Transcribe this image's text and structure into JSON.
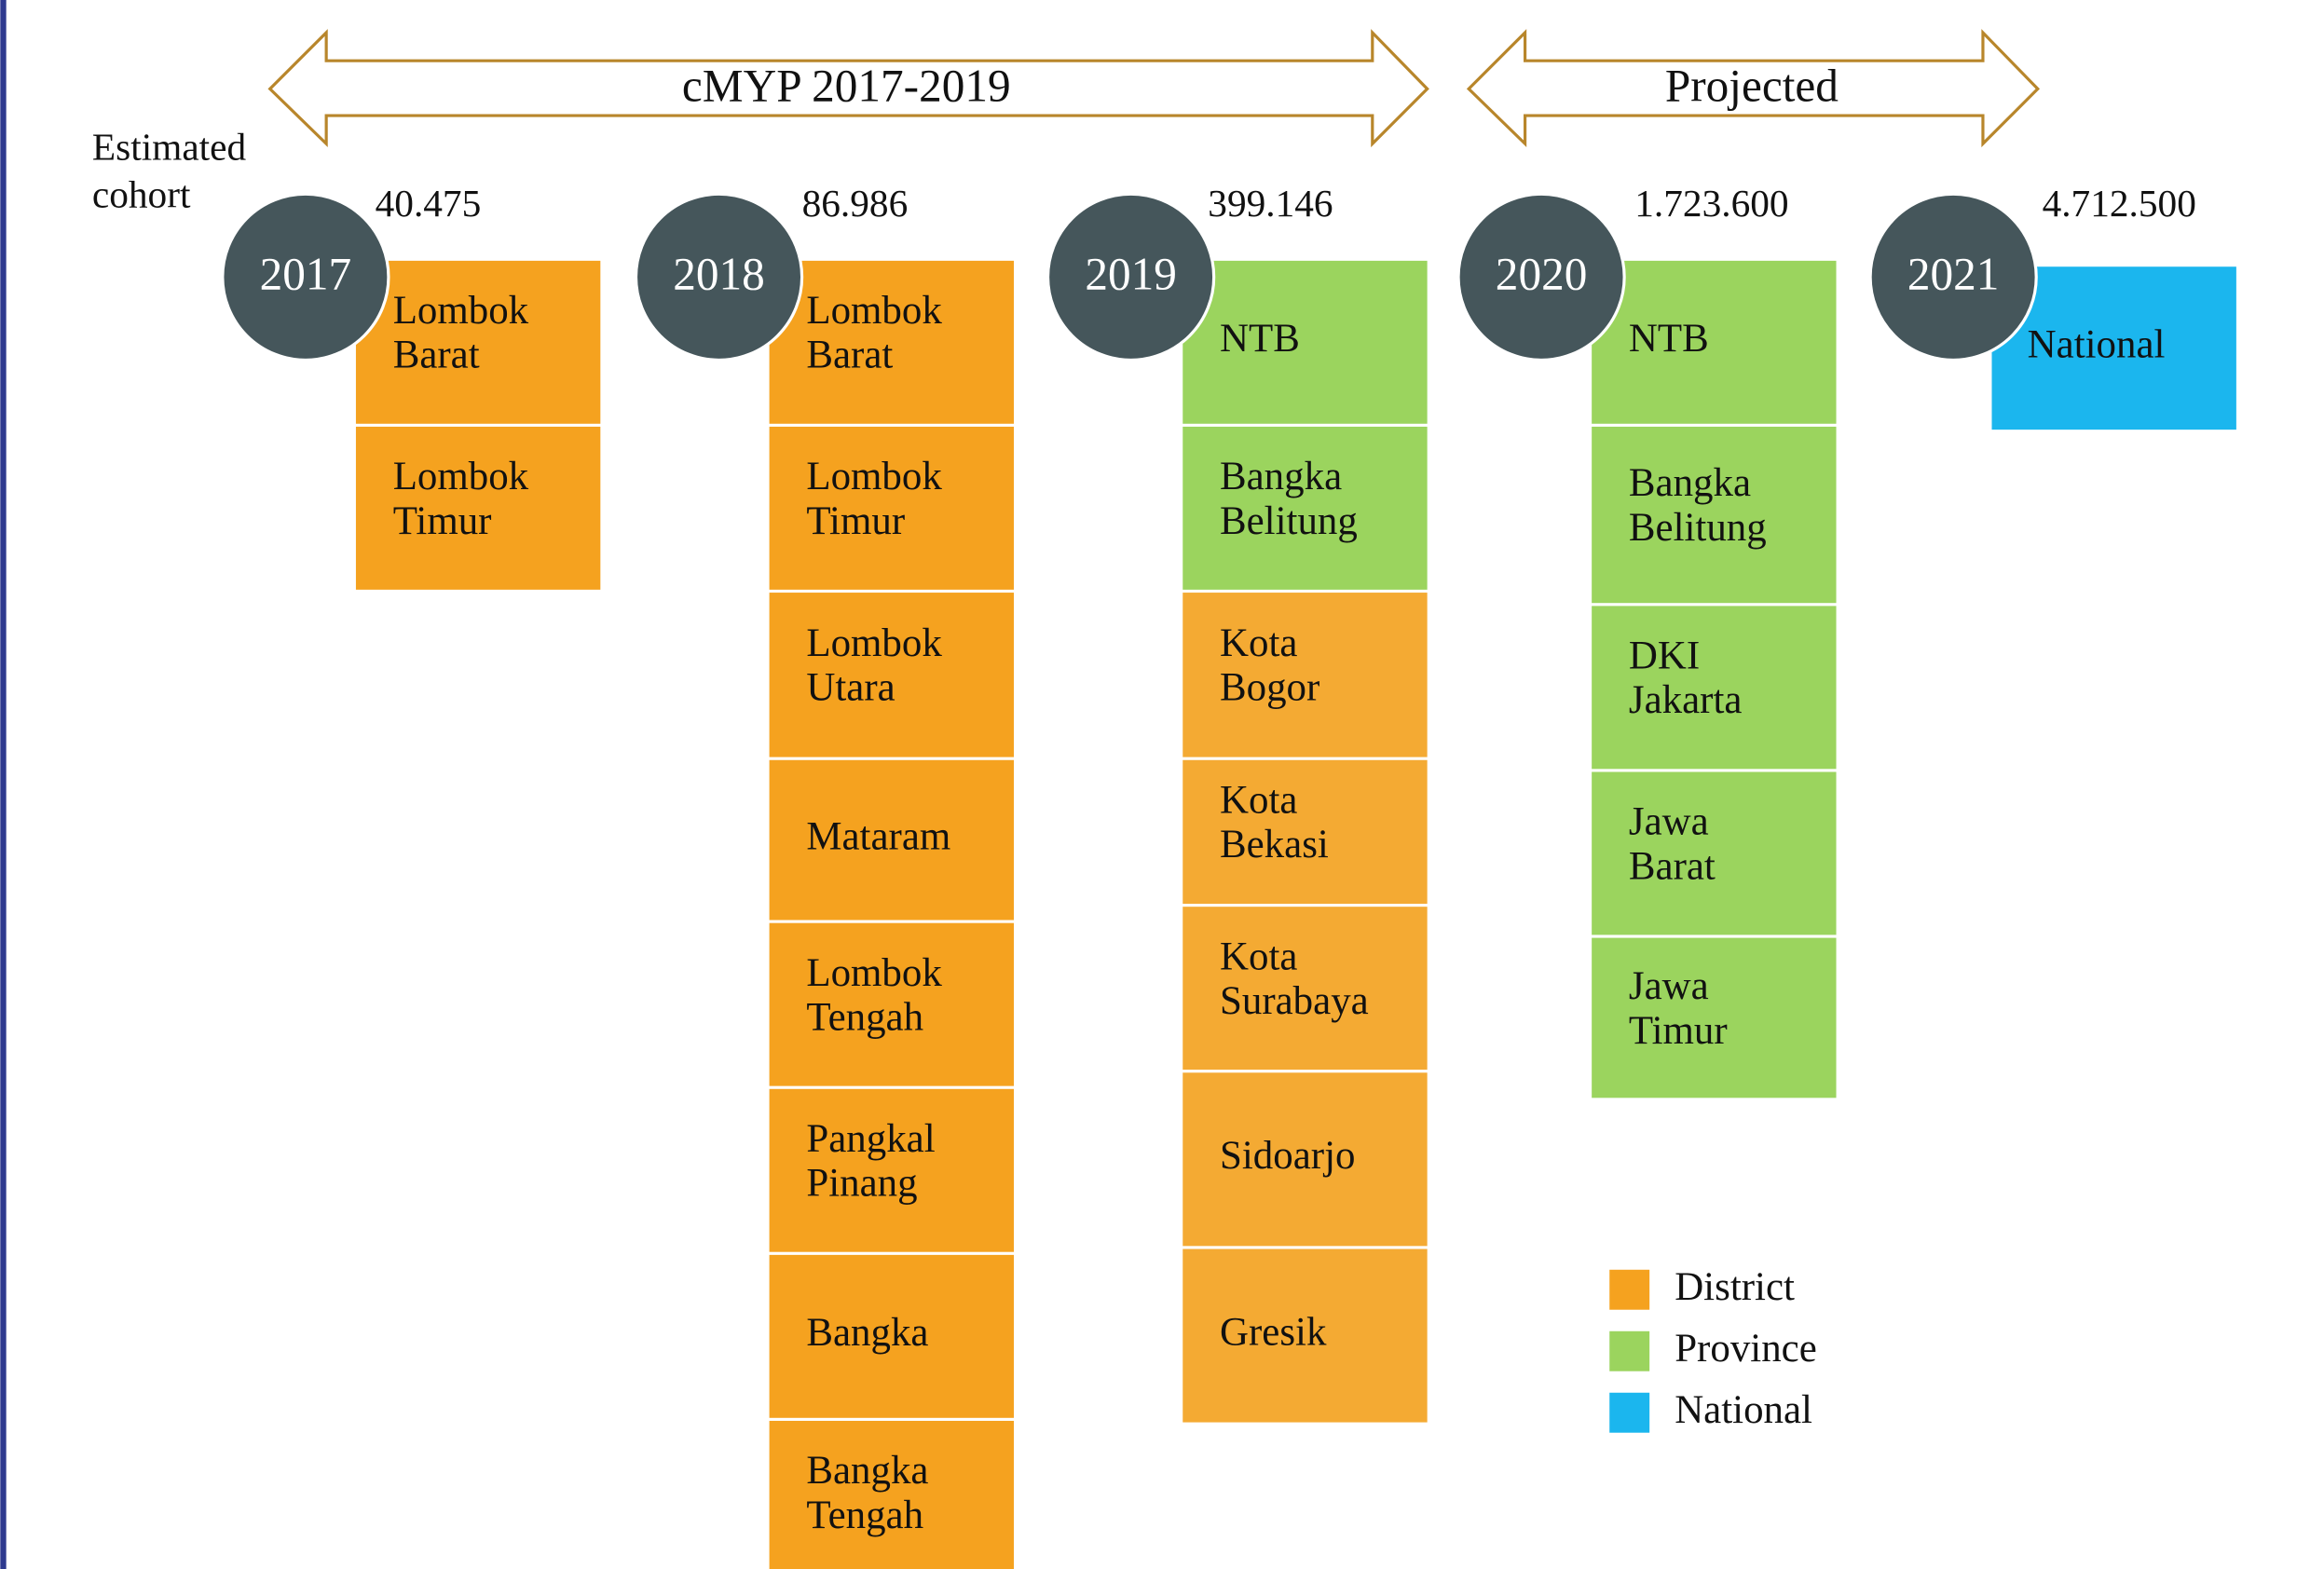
{
  "header": {
    "arrows": [
      {
        "label": "cMYP 2017-2019"
      },
      {
        "label": "Projected"
      }
    ],
    "cohort_label": [
      "Estimated",
      "cohort"
    ]
  },
  "legend": [
    {
      "label": "District",
      "color": "#F5A21F"
    },
    {
      "label": "Province",
      "color": "#9BD45E"
    },
    {
      "label": "National",
      "color": "#1BB6EE"
    }
  ],
  "columns": [
    {
      "year": "2017",
      "cohort": "40.475",
      "items": [
        {
          "lines": [
            "Lombok",
            "Barat"
          ],
          "level": 0
        },
        {
          "lines": [
            "Lombok",
            "Timur"
          ],
          "level": 0
        }
      ]
    },
    {
      "year": "2018",
      "cohort": "86.986",
      "items": [
        {
          "lines": [
            "Lombok",
            "Barat"
          ],
          "level": 0
        },
        {
          "lines": [
            "Lombok",
            "Timur"
          ],
          "level": 0
        },
        {
          "lines": [
            "Lombok",
            "Utara"
          ],
          "level": 0
        },
        {
          "lines": [
            "Mataram"
          ],
          "level": 0
        },
        {
          "lines": [
            "Lombok",
            "Tengah"
          ],
          "level": 0
        },
        {
          "lines": [
            "Pangkal",
            "Pinang"
          ],
          "level": 0
        },
        {
          "lines": [
            "Bangka"
          ],
          "level": 0
        },
        {
          "lines": [
            "Bangka",
            "Tengah"
          ],
          "level": 0
        }
      ]
    },
    {
      "year": "2019",
      "cohort": "399.146",
      "items": [
        {
          "lines": [
            "NTB"
          ],
          "level": 1
        },
        {
          "lines": [
            "Bangka",
            "Belitung"
          ],
          "level": 1
        },
        {
          "lines": [
            "Kota",
            "Bogor"
          ],
          "level": 0
        },
        {
          "lines": [
            "Kota",
            "Bekasi"
          ],
          "level": 0
        },
        {
          "lines": [
            "Kota",
            "Surabaya"
          ],
          "level": 0
        },
        {
          "lines": [
            "Sidoarjo"
          ],
          "level": 0
        },
        {
          "lines": [
            "Gresik"
          ],
          "level": 0
        }
      ]
    },
    {
      "year": "2020",
      "cohort": "1.723.600",
      "items": [
        {
          "lines": [
            "NTB"
          ],
          "level": 1
        },
        {
          "lines": [
            "Bangka",
            "Belitung"
          ],
          "level": 1
        },
        {
          "lines": [
            "DKI",
            "Jakarta"
          ],
          "level": 1
        },
        {
          "lines": [
            "Jawa",
            "Barat"
          ],
          "level": 1
        },
        {
          "lines": [
            "Jawa",
            "Timur"
          ],
          "level": 1
        }
      ]
    },
    {
      "year": "2021",
      "cohort": "4.712.500",
      "items": [
        {
          "lines": [
            "National"
          ],
          "level": 2
        }
      ]
    }
  ]
}
